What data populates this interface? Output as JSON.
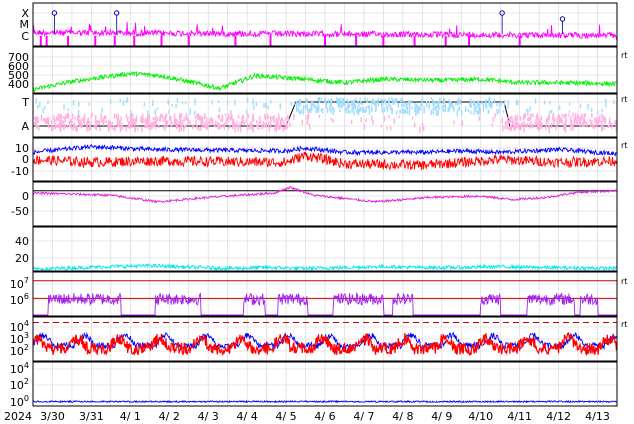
{
  "chart_data": {
    "type": "line",
    "title": "",
    "x_axis": {
      "year_label": "2024",
      "tick_labels": [
        "3/30",
        "3/31",
        "4/ 1",
        "4/ 2",
        "4/ 3",
        "4/ 4",
        "4/ 5",
        "4/ 6",
        "4/ 7",
        "4/ 8",
        "4/ 9",
        "4/10",
        "4/11",
        "4/12",
        "4/13"
      ],
      "start": "2024-03-29T18:00",
      "end": "2024-04-13T18:00"
    },
    "panels": [
      {
        "id": "xray",
        "y_tick_labels": [
          "X",
          "M",
          "C"
        ],
        "right_tag": "",
        "series": [
          {
            "color": "#ff00ff",
            "type": "line",
            "level_start": 0.35,
            "level_end": 0.25
          },
          {
            "color": "#ff00ff",
            "type": "impulses",
            "x_day": [
              0.2,
              0.35,
              0.9,
              1.6,
              2.1,
              2.6,
              3.3,
              4.0,
              5.2,
              6.1,
              7.5,
              8.3,
              9.0,
              9.8,
              10.6,
              11.2,
              12.5
            ]
          }
        ],
        "flare_markers": [
          {
            "x_day": 0.55,
            "level": "X"
          },
          {
            "x_day": 2.15,
            "level": "X"
          },
          {
            "x_day": 12.05,
            "level": "X"
          },
          {
            "x_day": 13.6,
            "level": "M"
          }
        ]
      },
      {
        "id": "solar-wind-speed",
        "y_tick_labels": [
          "700",
          "600",
          "500",
          "400"
        ],
        "ylim": [
          350,
          750
        ],
        "right_tag": "rt",
        "series": [
          {
            "color": "#00ee00",
            "anchors": [
              [
                0,
                380
              ],
              [
                1,
                450
              ],
              [
                2.5,
                520
              ],
              [
                3.3,
                500
              ],
              [
                4.8,
                390
              ],
              [
                5.7,
                500
              ],
              [
                7,
                470
              ],
              [
                8,
                440
              ],
              [
                9,
                470
              ],
              [
                10.5,
                460
              ],
              [
                11.5,
                470
              ],
              [
                12.5,
                440
              ],
              [
                13.5,
                440
              ],
              [
                15,
                430
              ]
            ]
          }
        ]
      },
      {
        "id": "imf-sector",
        "y_tick_labels": [
          "T",
          "A"
        ],
        "right_tag": "rt",
        "series": [
          {
            "color": "#000000",
            "name": "sector",
            "type": "step",
            "points": [
              [
                0,
                0
              ],
              [
                6.5,
                0
              ],
              [
                6.75,
                1
              ],
              [
                12.1,
                1
              ],
              [
                12.25,
                0
              ],
              [
                15,
                0
              ]
            ]
          },
          {
            "color": "#ffb0e0",
            "type": "scatter-band",
            "level": 0.1
          },
          {
            "color": "#a0dcff",
            "type": "scatter-band",
            "level": 0.9
          }
        ]
      },
      {
        "id": "imf-bz-bt",
        "y_tick_labels": [
          "10",
          "0",
          "-10"
        ],
        "ylim": [
          -15,
          15
        ],
        "right_tag": "rt",
        "series": [
          {
            "color": "#0000ff",
            "name": "Bt",
            "anchors": [
              [
                0,
                5
              ],
              [
                1.5,
                9
              ],
              [
                3,
                7
              ],
              [
                6.5,
                6
              ],
              [
                7,
                8
              ],
              [
                8,
                5
              ],
              [
                10,
                5
              ],
              [
                11,
                6
              ],
              [
                12,
                5
              ],
              [
                13.5,
                7
              ],
              [
                15,
                4
              ]
            ]
          },
          {
            "color": "#ff0000",
            "name": "Bz",
            "anchors": [
              [
                0,
                0
              ],
              [
                1.5,
                -2
              ],
              [
                3,
                -1
              ],
              [
                6.5,
                -2
              ],
              [
                7,
                3
              ],
              [
                8,
                -3
              ],
              [
                10,
                -4
              ],
              [
                11,
                -2
              ],
              [
                12,
                0
              ],
              [
                13.5,
                -2
              ],
              [
                15,
                -1
              ]
            ]
          }
        ]
      },
      {
        "id": "dst",
        "y_tick_labels": [
          "0",
          "-50"
        ],
        "ylim": [
          -80,
          20
        ],
        "right_tag": "",
        "hlines": [
          {
            "value": 0,
            "color": "#000000"
          }
        ],
        "series": [
          {
            "color": "#dd22dd",
            "anchors": [
              [
                0,
                -5
              ],
              [
                2,
                -10
              ],
              [
                3.2,
                -25
              ],
              [
                4.5,
                -15
              ],
              [
                6.2,
                -5
              ],
              [
                6.6,
                8
              ],
              [
                7.2,
                -10
              ],
              [
                8.8,
                -25
              ],
              [
                10.2,
                -15
              ],
              [
                11.5,
                -12
              ],
              [
                12.3,
                -20
              ],
              [
                13.2,
                -15
              ],
              [
                14,
                -3
              ],
              [
                15,
                0
              ]
            ]
          }
        ]
      },
      {
        "id": "ae-index",
        "y_tick_labels": [
          "40",
          "20"
        ],
        "ylim": [
          0,
          50
        ],
        "right_tag": "",
        "series": [
          {
            "color": "#00e5ee",
            "anchors": [
              [
                0,
                2
              ],
              [
                2,
                5
              ],
              [
                3,
                6
              ],
              [
                5,
                3
              ],
              [
                6,
                4
              ],
              [
                7,
                3
              ],
              [
                9,
                5
              ],
              [
                10,
                4
              ],
              [
                11,
                4
              ],
              [
                12,
                5
              ],
              [
                13,
                4
              ],
              [
                15,
                3
              ]
            ]
          }
        ]
      },
      {
        "id": "electron-flux",
        "y_tick_labels": [
          "10^7",
          "10^6"
        ],
        "ylim_log": [
          5.0,
          7.5
        ],
        "right_tag": "rt",
        "hlines": [
          {
            "value_log": 7,
            "color": "#cc0000"
          },
          {
            "value_log": 6,
            "color": "#cc0000"
          }
        ],
        "series": [
          {
            "color": "#a020f0",
            "active_ranges": [
              [
                0.8,
                4.5
              ],
              [
                6.3,
                8.6
              ],
              [
                10.8,
                11.9
              ],
              [
                12.6,
                14.1
              ],
              [
                15.4,
                18.0
              ],
              [
                18.5,
                19.5
              ],
              [
                23.0,
                24.0
              ],
              [
                25.4,
                27.8
              ],
              [
                28.1,
                29.0
              ]
            ]
          }
        ]
      },
      {
        "id": "proton-flux",
        "y_tick_labels": [
          "10^4",
          "10^3",
          "10^2"
        ],
        "ylim_log": [
          0.5,
          4.5
        ],
        "right_tag": "rt",
        "hlines": [
          {
            "value_log": 4,
            "color": "#cc0000",
            "dashed": true
          }
        ],
        "series": [
          {
            "color": "#0000ff",
            "name": "proton-high",
            "level_log": 1.9
          },
          {
            "color": "#ff0000",
            "name": "proton-low",
            "level_log": 1.6
          }
        ]
      },
      {
        "id": "neutron",
        "y_tick_labels": [
          "10^4",
          "10^2",
          "10^0"
        ],
        "ylim_log": [
          -0.5,
          4.5
        ],
        "right_tag": "",
        "series": [
          {
            "color": "#0000ff",
            "level_log": 0.0
          }
        ]
      }
    ]
  }
}
